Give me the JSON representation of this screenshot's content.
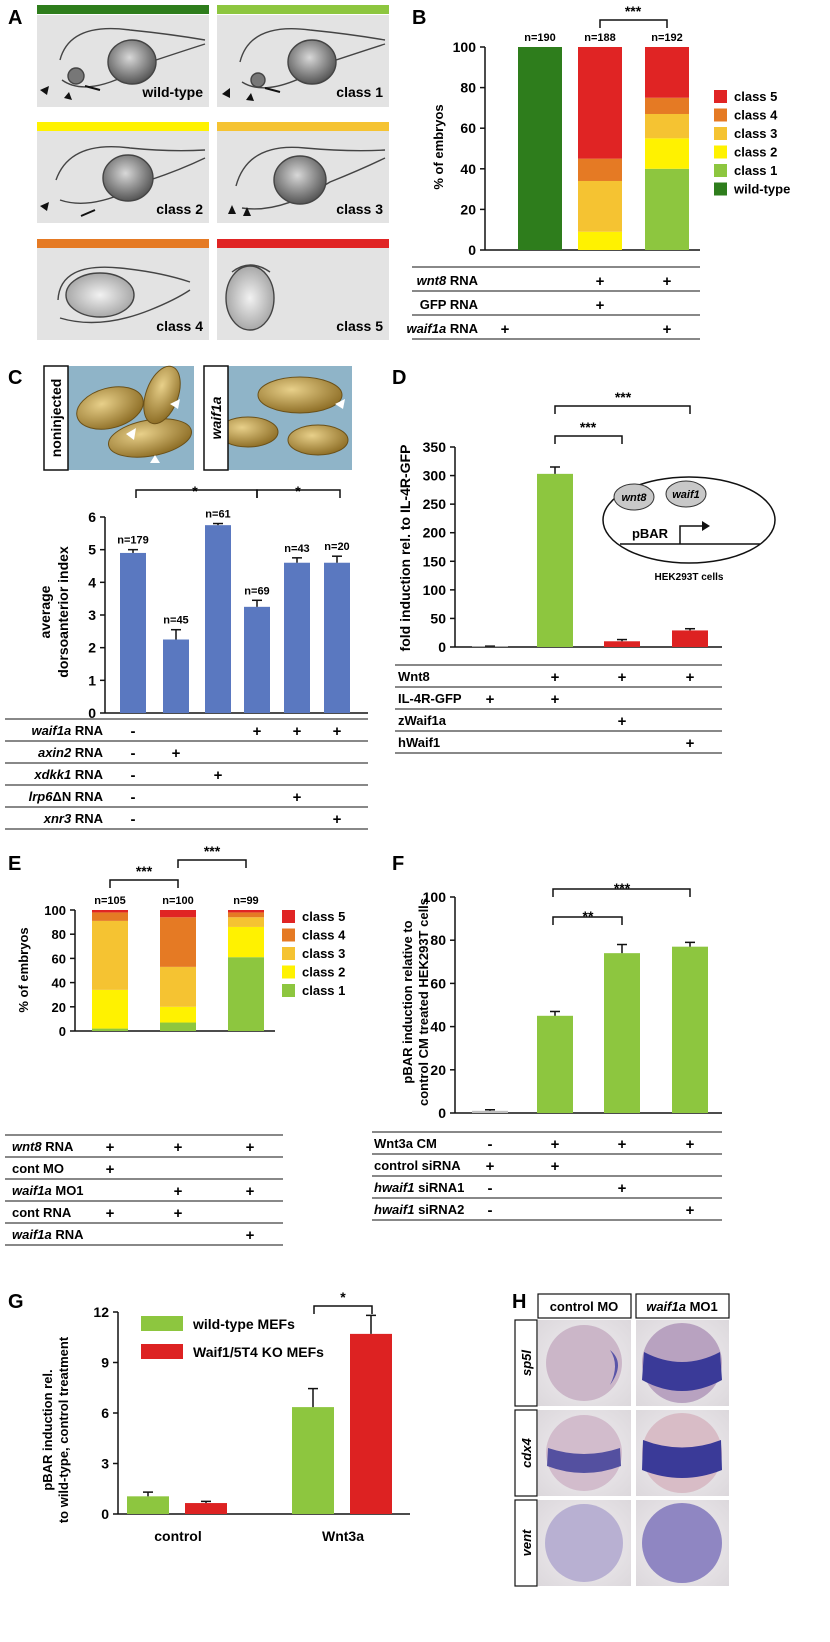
{
  "colors": {
    "wild_type": "#2e7d1c",
    "class1": "#8dc63f",
    "class2": "#fff200",
    "class3": "#f5c332",
    "class4": "#e57a24",
    "class5": "#e02424",
    "blue_bar": "#5a78c0",
    "green_bar": "#8dc63f",
    "red_bar": "#dd2222",
    "grey_bar": "#bfbfbf"
  },
  "panels": {
    "A": {
      "letter": "A",
      "images": [
        {
          "label": "wild-type",
          "color": "#2e7d1c"
        },
        {
          "label": "class 1",
          "color": "#8dc63f"
        },
        {
          "label": "class 2",
          "color": "#fff200"
        },
        {
          "label": "class 3",
          "color": "#f5c332"
        },
        {
          "label": "class 4",
          "color": "#e57a24"
        },
        {
          "label": "class 5",
          "color": "#e02424"
        }
      ]
    },
    "B": {
      "letter": "B",
      "significance": "***",
      "ylabel": "% of embryos",
      "legend": [
        "class 5",
        "class 4",
        "class 3",
        "class 2",
        "class 1",
        "wild-type"
      ],
      "table_rows": [
        {
          "label_italic": "wnt8",
          "label_rest": " RNA",
          "marks": [
            "",
            "+",
            "+"
          ]
        },
        {
          "label_italic": "",
          "label_rest": "GFP RNA",
          "marks": [
            "",
            "+",
            ""
          ]
        },
        {
          "label_italic": "waif1a",
          "label_rest": " RNA",
          "marks": [
            "+",
            "",
            "+"
          ]
        }
      ]
    },
    "C": {
      "letter": "C",
      "photo_left_label": "noninjected",
      "photo_right_label": "waif1a",
      "significance": [
        "*",
        "*"
      ],
      "ylabel": [
        "average",
        "dorsoanterior index"
      ],
      "table_rows": [
        {
          "label_italic": "waif1a",
          "label_rest": " RNA",
          "marks": [
            "-",
            "",
            "",
            "+",
            "+",
            "+"
          ]
        },
        {
          "label_italic": "axin2",
          "label_rest": " RNA",
          "marks": [
            "-",
            "+",
            "",
            "",
            "",
            ""
          ]
        },
        {
          "label_italic": "xdkk1",
          "label_rest": " RNA",
          "marks": [
            "-",
            "",
            "+",
            "",
            "",
            ""
          ]
        },
        {
          "label_italic": "lrp6",
          "label_rest": "ΔN RNA",
          "marks": [
            "-",
            "",
            "",
            "",
            "+",
            ""
          ]
        },
        {
          "label_italic": "xnr3",
          "label_rest": " RNA",
          "marks": [
            "-",
            "",
            "",
            "",
            "",
            "+"
          ]
        }
      ]
    },
    "D": {
      "letter": "D",
      "significance": [
        "***",
        "***"
      ],
      "ylabel": "fold induction rel. to IL-4R-GFP",
      "inset": {
        "gene1": "wnt8",
        "gene2": "waif1",
        "reporter": "pBAR",
        "cells": "HEK293T cells"
      },
      "table_rows": [
        {
          "label": "Wnt8",
          "marks": [
            "",
            "+",
            "+",
            "+"
          ]
        },
        {
          "label": "IL-4R-GFP",
          "marks": [
            "+",
            "+",
            "",
            ""
          ]
        },
        {
          "label": "zWaif1a",
          "marks": [
            "",
            "",
            "+",
            ""
          ]
        },
        {
          "label": "hWaif1",
          "marks": [
            "",
            "",
            "",
            "+"
          ]
        }
      ]
    },
    "E": {
      "letter": "E",
      "significance": [
        "***",
        "***"
      ],
      "ylabel": "% of embryos",
      "legend": [
        "class 5",
        "class 4",
        "class 3",
        "class 2",
        "class 1"
      ],
      "table_rows": [
        {
          "label_italic": "wnt8",
          "label_rest": " RNA",
          "marks": [
            "+",
            "+",
            "+"
          ]
        },
        {
          "label_italic": "",
          "label_rest": "cont MO",
          "marks": [
            "+",
            "",
            ""
          ]
        },
        {
          "label_italic": "waif1a",
          "label_rest": " MO1",
          "marks": [
            "",
            "+",
            "+"
          ]
        },
        {
          "label_italic": "",
          "label_rest": "cont RNA",
          "marks": [
            "+",
            "+",
            ""
          ]
        },
        {
          "label_italic": "waif1a",
          "label_rest": " RNA",
          "marks": [
            "",
            "",
            "+"
          ]
        }
      ]
    },
    "F": {
      "letter": "F",
      "significance": [
        "**",
        "***"
      ],
      "ylabel": [
        "pBAR induction relative to",
        "control CM treated HEK293T cells"
      ],
      "table_rows": [
        {
          "label_italic": "",
          "label_rest": "Wnt3a CM",
          "marks": [
            "-",
            "+",
            "+",
            "+"
          ]
        },
        {
          "label_italic": "",
          "label_rest": "control siRNA",
          "marks": [
            "+",
            "+",
            "",
            ""
          ]
        },
        {
          "label_italic": "hwaif1",
          "label_rest": " siRNA1",
          "marks": [
            "-",
            "",
            "+",
            ""
          ]
        },
        {
          "label_italic": "hwaif1",
          "label_rest": " siRNA2",
          "marks": [
            "-",
            "",
            "",
            "+"
          ]
        }
      ]
    },
    "G": {
      "letter": "G",
      "significance": "*",
      "ylabel": [
        "pBAR induction rel.",
        "to wild-type, control treatment"
      ]
    },
    "H": {
      "letter": "H",
      "col_headers": [
        {
          "italic": "",
          "rest": "control MO"
        },
        {
          "italic": "waif1a",
          "rest": " MO1"
        }
      ],
      "row_labels": [
        "sp5l",
        "cdx4",
        "vent"
      ]
    }
  },
  "chart_data": [
    {
      "panel": "B",
      "type": "bar",
      "stacked": true,
      "ylabel": "% of embryos",
      "ylim": [
        0,
        100
      ],
      "yticks": [
        0,
        20,
        40,
        60,
        80,
        100
      ],
      "bar_labels": [
        "n=190",
        "n=188",
        "n=192"
      ],
      "series": [
        {
          "name": "wild-type",
          "values": [
            100,
            0,
            0
          ]
        },
        {
          "name": "class 1",
          "values": [
            0,
            0,
            40
          ]
        },
        {
          "name": "class 2",
          "values": [
            0,
            9,
            15
          ]
        },
        {
          "name": "class 3",
          "values": [
            0,
            25,
            12
          ]
        },
        {
          "name": "class 4",
          "values": [
            0,
            11,
            8
          ]
        },
        {
          "name": "class 5",
          "values": [
            0,
            55,
            25
          ]
        }
      ]
    },
    {
      "panel": "C",
      "type": "bar",
      "ylim": [
        0,
        6
      ],
      "yticks": [
        0,
        1,
        2,
        3,
        4,
        5,
        6
      ],
      "values": [
        4.9,
        2.25,
        5.75,
        3.25,
        4.6,
        4.6
      ],
      "errors": [
        0.1,
        0.3,
        0.05,
        0.2,
        0.15,
        0.2
      ],
      "bar_labels": [
        "n=179",
        "n=45",
        "n=61",
        "n=69",
        "n=43",
        "n=20"
      ]
    },
    {
      "panel": "D",
      "type": "bar",
      "ylabel": "fold induction rel. to IL-4R-GFP",
      "ylim": [
        0,
        350
      ],
      "yticks": [
        0,
        50,
        100,
        150,
        200,
        250,
        300,
        350
      ],
      "values": [
        1,
        303,
        10,
        29
      ],
      "errors": [
        0.5,
        12,
        3,
        3
      ],
      "bar_colors": [
        "grey",
        "green",
        "red",
        "red"
      ]
    },
    {
      "panel": "E",
      "type": "bar",
      "stacked": true,
      "ylabel": "% of embryos",
      "ylim": [
        0,
        100
      ],
      "yticks": [
        0,
        20,
        40,
        60,
        80,
        100
      ],
      "bar_labels": [
        "n=105",
        "n=100",
        "n=99"
      ],
      "series": [
        {
          "name": "class 1",
          "values": [
            2,
            7,
            61
          ]
        },
        {
          "name": "class 2",
          "values": [
            32,
            13,
            25
          ]
        },
        {
          "name": "class 3",
          "values": [
            57,
            33,
            8
          ]
        },
        {
          "name": "class 4",
          "values": [
            7,
            41,
            4
          ]
        },
        {
          "name": "class 5",
          "values": [
            2,
            6,
            2
          ]
        }
      ]
    },
    {
      "panel": "F",
      "type": "bar",
      "ylabel": "pBAR induction relative to control CM treated HEK293T cells",
      "ylim": [
        0,
        100
      ],
      "yticks": [
        0,
        20,
        40,
        60,
        80,
        100
      ],
      "values": [
        1,
        45,
        74,
        77
      ],
      "errors": [
        0.5,
        2,
        4,
        2
      ],
      "bar_colors": [
        "grey",
        "green",
        "green",
        "green"
      ]
    },
    {
      "panel": "G",
      "type": "bar",
      "ylabel": "pBAR induction rel. to wild-type, control treatment",
      "ylim": [
        0,
        12
      ],
      "yticks": [
        0,
        3,
        6,
        9,
        12
      ],
      "categories": [
        "control",
        "Wnt3a"
      ],
      "series": [
        {
          "name": "wild-type MEFs",
          "values": [
            1.05,
            6.35
          ],
          "errors": [
            0.25,
            1.1
          ]
        },
        {
          "name": "Waif1/5T4 KO MEFs",
          "values": [
            0.65,
            10.7
          ],
          "errors": [
            0.1,
            1.1
          ]
        }
      ]
    }
  ]
}
